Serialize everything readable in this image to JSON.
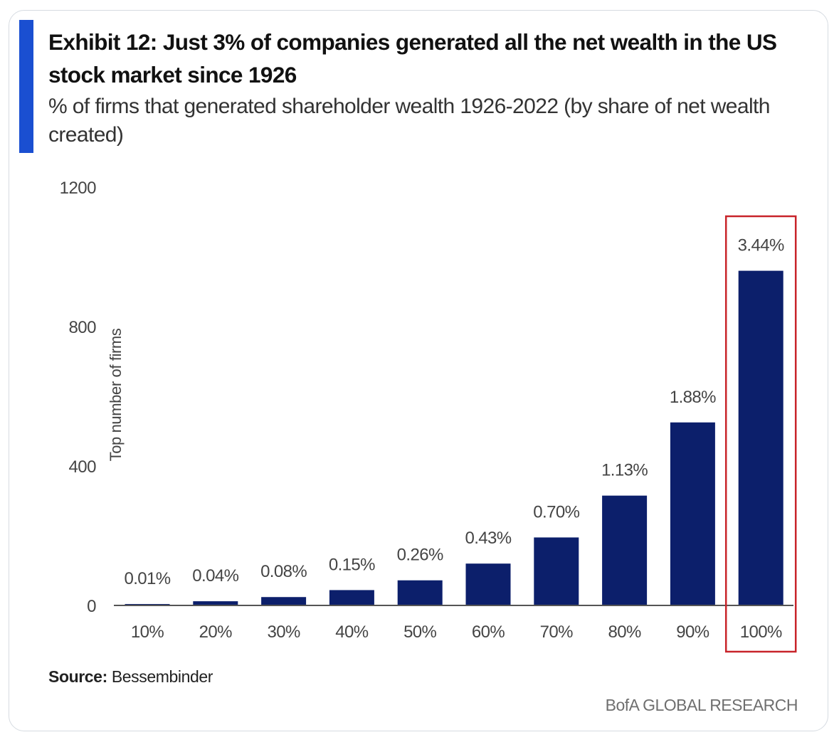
{
  "chart_data": {
    "type": "bar",
    "title": "Exhibit 12: Just 3% of companies generated all the net wealth in the US stock market since 1926",
    "subtitle": "% of firms that generated shareholder wealth 1926-2022 (by share of net wealth created)",
    "xlabel": "",
    "ylabel": "Top number of firms",
    "ylim": [
      0,
      1200
    ],
    "yticks": [
      "0",
      "400",
      "800",
      "1200"
    ],
    "ytick_values": [
      0,
      400,
      800,
      1200
    ],
    "grid": false,
    "categories": [
      "10%",
      "20%",
      "30%",
      "40%",
      "50%",
      "60%",
      "70%",
      "80%",
      "90%",
      "100%"
    ],
    "values": [
      4,
      12,
      24,
      44,
      72,
      120,
      195,
      315,
      525,
      960
    ],
    "data_labels": [
      "0.01%",
      "0.04%",
      "0.08%",
      "0.15%",
      "0.26%",
      "0.43%",
      "0.70%",
      "1.13%",
      "1.88%",
      "3.44%"
    ],
    "highlight": "100%",
    "colors": {
      "bar": "#0c1f6b",
      "highlight_box": "#c8242a",
      "accent": "#1a4fd1"
    }
  },
  "source": {
    "label": "Source:",
    "text": "Bessembinder"
  },
  "brand": "BofA GLOBAL RESEARCH"
}
